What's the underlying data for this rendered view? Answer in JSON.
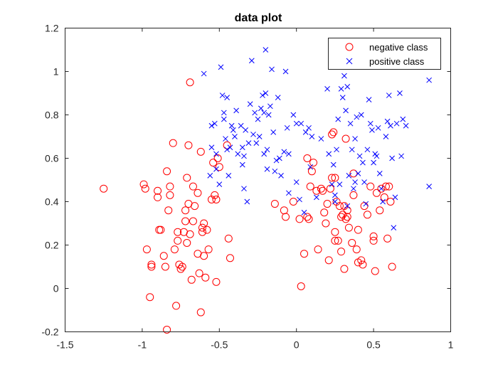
{
  "chart_data": {
    "type": "scatter",
    "title": "data plot",
    "xlabel": "",
    "ylabel": "",
    "xlim": [
      -1.5,
      1
    ],
    "ylim": [
      -0.2,
      1.2
    ],
    "xticks": [
      "-1.5",
      "-1",
      "-0.5",
      "0",
      "0.5",
      "1"
    ],
    "yticks": [
      "-0.2",
      "0",
      "0.2",
      "0.4",
      "0.6",
      "0.8",
      "1",
      "1.2"
    ],
    "grid": false,
    "legend_position": "top-right",
    "series": [
      {
        "name": "negative class",
        "marker": "circle",
        "color": "#ff0000",
        "points": [
          [
            -1.25,
            0.46
          ],
          [
            -0.99,
            0.48
          ],
          [
            -0.98,
            0.46
          ],
          [
            -0.97,
            0.18
          ],
          [
            -0.95,
            -0.04
          ],
          [
            -0.94,
            0.11
          ],
          [
            -0.94,
            0.1
          ],
          [
            -0.9,
            0.45
          ],
          [
            -0.9,
            0.42
          ],
          [
            -0.89,
            0.27
          ],
          [
            -0.88,
            0.27
          ],
          [
            -0.86,
            0.15
          ],
          [
            -0.85,
            0.1
          ],
          [
            -0.84,
            0.54
          ],
          [
            -0.83,
            0.36
          ],
          [
            -0.82,
            0.47
          ],
          [
            -0.82,
            0.43
          ],
          [
            -0.8,
            0.67
          ],
          [
            -0.79,
            0.18
          ],
          [
            -0.78,
            -0.08
          ],
          [
            -0.77,
            0.26
          ],
          [
            -0.77,
            0.22
          ],
          [
            -0.76,
            0.11
          ],
          [
            -0.75,
            0.09
          ],
          [
            -0.74,
            0.1
          ],
          [
            -0.73,
            0.26
          ],
          [
            -0.72,
            0.36
          ],
          [
            -0.72,
            0.31
          ],
          [
            -0.71,
            0.51
          ],
          [
            -0.71,
            0.21
          ],
          [
            -0.7,
            0.66
          ],
          [
            -0.7,
            0.39
          ],
          [
            -0.69,
            0.95
          ],
          [
            -0.69,
            0.25
          ],
          [
            -0.68,
            0.04
          ],
          [
            -0.67,
            0.47
          ],
          [
            -0.67,
            0.31
          ],
          [
            -0.66,
            0.38
          ],
          [
            -0.64,
            0.44
          ],
          [
            -0.64,
            0.16
          ],
          [
            -0.63,
            0.07
          ],
          [
            -0.62,
            0.63
          ],
          [
            -0.62,
            -0.11
          ],
          [
            -0.61,
            0.26
          ],
          [
            -0.61,
            0.28
          ],
          [
            -0.6,
            0.3
          ],
          [
            -0.6,
            0.15
          ],
          [
            -0.59,
            0.05
          ],
          [
            -0.58,
            0.27
          ],
          [
            -0.57,
            0.18
          ],
          [
            -0.55,
            0.41
          ],
          [
            -0.54,
            0.58
          ],
          [
            -0.53,
            0.43
          ],
          [
            -0.52,
            0.41
          ],
          [
            -0.52,
            0.03
          ],
          [
            -0.51,
            0.6
          ],
          [
            -0.5,
            0.56
          ],
          [
            -0.45,
            0.66
          ],
          [
            -0.44,
            0.23
          ],
          [
            -0.43,
            0.14
          ],
          [
            -0.84,
            -0.19
          ],
          [
            -0.14,
            0.39
          ],
          [
            -0.08,
            0.36
          ],
          [
            -0.07,
            0.33
          ],
          [
            -0.02,
            0.4
          ],
          [
            0.02,
            0.32
          ],
          [
            0.03,
            0.01
          ],
          [
            0.05,
            0.16
          ],
          [
            0.07,
            0.33
          ],
          [
            0.07,
            0.6
          ],
          [
            0.08,
            0.32
          ],
          [
            0.09,
            0.47
          ],
          [
            0.1,
            0.54
          ],
          [
            0.11,
            0.58
          ],
          [
            0.13,
            0.45
          ],
          [
            0.14,
            0.18
          ],
          [
            0.16,
            0.46
          ],
          [
            0.17,
            0.45
          ],
          [
            0.18,
            0.35
          ],
          [
            0.19,
            0.3
          ],
          [
            0.2,
            0.39
          ],
          [
            0.21,
            0.13
          ],
          [
            0.22,
            0.46
          ],
          [
            0.23,
            0.51
          ],
          [
            0.23,
            0.71
          ],
          [
            0.24,
            0.72
          ],
          [
            0.25,
            0.26
          ],
          [
            0.25,
            0.51
          ],
          [
            0.25,
            0.22
          ],
          [
            0.26,
            0.4
          ],
          [
            0.27,
            0.22
          ],
          [
            0.28,
            0.38
          ],
          [
            0.29,
            0.17
          ],
          [
            0.29,
            0.33
          ],
          [
            0.3,
            0.34
          ],
          [
            0.31,
            0.38
          ],
          [
            0.31,
            0.09
          ],
          [
            0.32,
            0.69
          ],
          [
            0.33,
            0.33
          ],
          [
            0.33,
            0.36
          ],
          [
            0.34,
            0.28
          ],
          [
            0.36,
            0.21
          ],
          [
            0.37,
            0.53
          ],
          [
            0.37,
            0.43
          ],
          [
            0.39,
            0.18
          ],
          [
            0.4,
            0.27
          ],
          [
            0.4,
            0.12
          ],
          [
            0.42,
            0.13
          ],
          [
            0.43,
            0.11
          ],
          [
            0.44,
            0.38
          ],
          [
            0.46,
            0.34
          ],
          [
            0.48,
            0.47
          ],
          [
            0.5,
            0.22
          ],
          [
            0.5,
            0.24
          ],
          [
            0.51,
            0.08
          ],
          [
            0.52,
            0.44
          ],
          [
            0.54,
            0.36
          ],
          [
            0.55,
            0.46
          ],
          [
            0.57,
            0.42
          ],
          [
            0.58,
            0.47
          ],
          [
            0.59,
            0.23
          ],
          [
            0.6,
            0.47
          ],
          [
            0.61,
            0.4
          ],
          [
            0.62,
            0.1
          ],
          [
            0.32,
            0.32
          ]
        ]
      },
      {
        "name": "positive class",
        "marker": "x",
        "color": "#0000ff",
        "points": [
          [
            -0.6,
            0.99
          ],
          [
            -0.49,
            1.02
          ],
          [
            -0.56,
            0.52
          ],
          [
            -0.55,
            0.65
          ],
          [
            -0.55,
            0.75
          ],
          [
            -0.53,
            0.76
          ],
          [
            -0.52,
            0.62
          ],
          [
            -0.52,
            0.55
          ],
          [
            -0.5,
            0.48
          ],
          [
            -0.48,
            0.89
          ],
          [
            -0.47,
            0.78
          ],
          [
            -0.47,
            0.81
          ],
          [
            -0.46,
            0.69
          ],
          [
            -0.45,
            0.88
          ],
          [
            -0.45,
            0.64
          ],
          [
            -0.44,
            0.52
          ],
          [
            -0.43,
            0.65
          ],
          [
            -0.42,
            0.75
          ],
          [
            -0.41,
            0.73
          ],
          [
            -0.4,
            0.7
          ],
          [
            -0.39,
            0.82
          ],
          [
            -0.38,
            0.62
          ],
          [
            -0.36,
            0.75
          ],
          [
            -0.35,
            0.65
          ],
          [
            -0.35,
            0.57
          ],
          [
            -0.34,
            0.61
          ],
          [
            -0.34,
            0.46
          ],
          [
            -0.33,
            0.73
          ],
          [
            -0.32,
            0.4
          ],
          [
            -0.31,
            0.67
          ],
          [
            -0.3,
            0.85
          ],
          [
            -0.29,
            1.05
          ],
          [
            -0.28,
            0.71
          ],
          [
            -0.27,
            0.81
          ],
          [
            -0.26,
            0.67
          ],
          [
            -0.25,
            0.78
          ],
          [
            -0.24,
            0.7
          ],
          [
            -0.23,
            0.83
          ],
          [
            -0.22,
            0.89
          ],
          [
            -0.21,
            0.81
          ],
          [
            -0.21,
            0.62
          ],
          [
            -0.2,
            0.9
          ],
          [
            -0.2,
            1.1
          ],
          [
            -0.19,
            0.64
          ],
          [
            -0.19,
            0.55
          ],
          [
            -0.18,
            0.8
          ],
          [
            -0.17,
            0.84
          ],
          [
            -0.16,
            1.01
          ],
          [
            -0.15,
            0.72
          ],
          [
            -0.14,
            0.54
          ],
          [
            -0.13,
            0.59
          ],
          [
            -0.12,
            0.88
          ],
          [
            -0.11,
            0.6
          ],
          [
            -0.1,
            0.52
          ],
          [
            -0.08,
            0.63
          ],
          [
            -0.07,
            1.0
          ],
          [
            -0.06,
            0.74
          ],
          [
            -0.05,
            0.62
          ],
          [
            -0.05,
            0.44
          ],
          [
            -0.02,
            0.8
          ],
          [
            0.0,
            0.76
          ],
          [
            0.02,
            0.41
          ],
          [
            0.03,
            0.76
          ],
          [
            0.05,
            0.35
          ],
          [
            0.06,
            0.72
          ],
          [
            0.08,
            0.74
          ],
          [
            0.09,
            0.56
          ],
          [
            0.1,
            0.7
          ],
          [
            0.13,
            0.42
          ],
          [
            0.16,
            0.69
          ],
          [
            0.2,
            0.92
          ],
          [
            0.21,
            0.62
          ],
          [
            0.23,
            0.48
          ],
          [
            0.24,
            0.57
          ],
          [
            0.25,
            0.43
          ],
          [
            0.26,
            0.64
          ],
          [
            0.27,
            0.78
          ],
          [
            0.28,
            0.48
          ],
          [
            0.29,
            0.92
          ],
          [
            0.3,
            0.88
          ],
          [
            0.31,
            0.98
          ],
          [
            0.32,
            0.82
          ],
          [
            0.33,
            0.93
          ],
          [
            0.34,
            0.52
          ],
          [
            0.35,
            0.76
          ],
          [
            0.36,
            0.64
          ],
          [
            0.37,
            0.46
          ],
          [
            0.38,
            0.69
          ],
          [
            0.39,
            0.79
          ],
          [
            0.4,
            0.53
          ],
          [
            0.41,
            0.61
          ],
          [
            0.42,
            0.8
          ],
          [
            0.43,
            0.58
          ],
          [
            0.44,
            0.49
          ],
          [
            0.45,
            0.39
          ],
          [
            0.46,
            0.64
          ],
          [
            0.47,
            0.87
          ],
          [
            0.48,
            0.76
          ],
          [
            0.49,
            0.73
          ],
          [
            0.5,
            0.58
          ],
          [
            0.51,
            0.62
          ],
          [
            0.52,
            0.61
          ],
          [
            0.53,
            0.74
          ],
          [
            0.54,
            0.53
          ],
          [
            0.55,
            0.46
          ],
          [
            0.56,
            0.4
          ],
          [
            0.58,
            0.7
          ],
          [
            0.59,
            0.77
          ],
          [
            0.6,
            0.89
          ],
          [
            0.61,
            0.75
          ],
          [
            0.62,
            0.6
          ],
          [
            0.63,
            0.28
          ],
          [
            0.64,
            0.42
          ],
          [
            0.65,
            0.76
          ],
          [
            0.67,
            0.9
          ],
          [
            0.68,
            0.61
          ],
          [
            0.69,
            0.78
          ],
          [
            0.71,
            0.75
          ],
          [
            0.86,
            0.96
          ],
          [
            0.86,
            0.47
          ],
          [
            0.0,
            0.49
          ],
          [
            0.38,
            0.49
          ],
          [
            0.25,
            0.4
          ],
          [
            0.33,
            0.38
          ]
        ]
      }
    ]
  }
}
